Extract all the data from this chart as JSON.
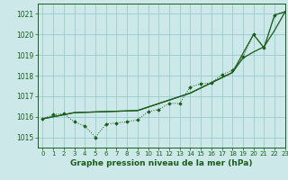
{
  "title": "Graphe pression niveau de la mer (hPa)",
  "background_color": "#cce8e8",
  "grid_color": "#99cccc",
  "line_color_dark": "#1a5c1a",
  "xlim": [
    -0.5,
    23
  ],
  "ylim": [
    1014.5,
    1021.5
  ],
  "yticks": [
    1015,
    1016,
    1017,
    1018,
    1019,
    1020,
    1021
  ],
  "xticks": [
    0,
    1,
    2,
    3,
    4,
    5,
    6,
    7,
    8,
    9,
    10,
    11,
    12,
    13,
    14,
    15,
    16,
    17,
    18,
    19,
    20,
    21,
    22,
    23
  ],
  "series_dotted_x": [
    0,
    1,
    2,
    3,
    4,
    5,
    6,
    7,
    8,
    9,
    10,
    11,
    12,
    13,
    14,
    15,
    16,
    17,
    18,
    19,
    20,
    21,
    22,
    23
  ],
  "series_dotted_y": [
    1015.9,
    1016.1,
    1016.15,
    1015.75,
    1015.55,
    1015.0,
    1015.65,
    1015.7,
    1015.75,
    1015.85,
    1016.25,
    1016.35,
    1016.65,
    1016.65,
    1017.45,
    1017.6,
    1017.65,
    1018.05,
    1018.25,
    1018.9,
    1020.0,
    1019.35,
    1020.95,
    1021.1
  ],
  "series_line1_x": [
    0,
    3,
    9,
    14,
    18,
    20,
    21,
    22,
    23
  ],
  "series_line1_y": [
    1015.9,
    1016.2,
    1016.3,
    1017.15,
    1018.15,
    1020.0,
    1019.35,
    1020.95,
    1021.1
  ],
  "series_line2_x": [
    0,
    3,
    9,
    14,
    18,
    19,
    20,
    21,
    22,
    23
  ],
  "series_line2_y": [
    1015.9,
    1016.2,
    1016.3,
    1017.15,
    1018.15,
    1018.85,
    1019.15,
    1019.4,
    1020.2,
    1021.1
  ]
}
